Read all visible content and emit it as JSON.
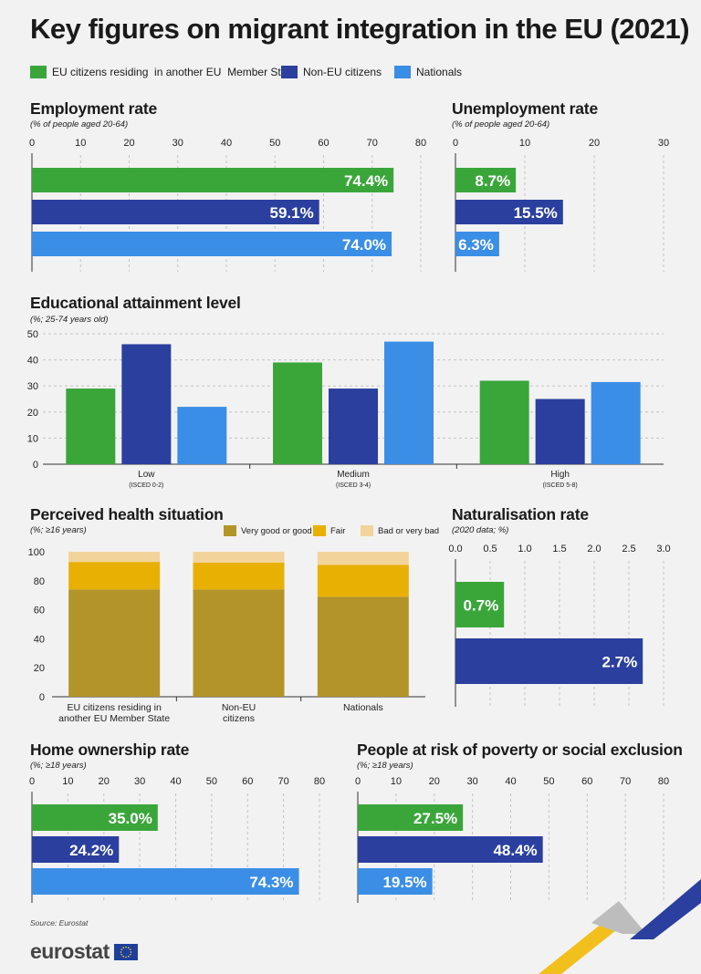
{
  "title": "Key figures on migrant integration in the EU (2021)",
  "colors": {
    "eu": "#3aa63a",
    "noneu": "#2a3f9e",
    "nationals": "#3b8ee6",
    "health_good": "#b39429",
    "health_fair": "#e8b002",
    "health_bad": "#f2d49a"
  },
  "legend": [
    {
      "label": "EU citizens residing  in another EU  Member State"
    },
    {
      "label": "Non-EU citizens"
    },
    {
      "label": "Nationals"
    }
  ],
  "sections": {
    "employment": {
      "title": "Employment rate",
      "subtitle": "(% of people aged 20-64)"
    },
    "unemployment": {
      "title": "Unemployment rate",
      "subtitle": "(% of people aged 20-64)"
    },
    "education": {
      "title": "Educational attainment level",
      "subtitle": "(%; 25-74 years old)"
    },
    "health": {
      "title": "Perceived health situation",
      "subtitle": "(%; ≥16 years)"
    },
    "naturalisation": {
      "title": "Naturalisation rate",
      "subtitle": "(2020 data; %)"
    },
    "home": {
      "title": "Home ownership rate",
      "subtitle": "(%; ≥18 years)"
    },
    "poverty": {
      "title": "People at risk of poverty or social exclusion",
      "subtitle": "(%; ≥18 years)"
    }
  },
  "health_legend": [
    {
      "label": "Very good or good"
    },
    {
      "label": "Fair"
    },
    {
      "label": "Bad or very bad"
    }
  ],
  "source": "Source: Eurostat",
  "logo_text": "eurostat",
  "chart_data": [
    {
      "id": "employment",
      "type": "bar",
      "orientation": "horizontal",
      "title": "Employment rate",
      "categories": [
        "EU citizens residing in another EU Member State",
        "Non-EU citizens",
        "Nationals"
      ],
      "values": [
        74.4,
        59.1,
        74.0
      ],
      "labels": [
        "74.4%",
        "59.1%",
        "74.0%"
      ],
      "xlim": [
        0,
        80
      ],
      "ticks": [
        "0",
        "10",
        "20",
        "30",
        "40",
        "50",
        "60",
        "70",
        "80"
      ]
    },
    {
      "id": "unemployment",
      "type": "bar",
      "orientation": "horizontal",
      "title": "Unemployment rate",
      "categories": [
        "EU citizens residing in another EU Member State",
        "Non-EU citizens",
        "Nationals"
      ],
      "values": [
        8.7,
        15.5,
        6.3
      ],
      "labels": [
        "8.7%",
        "15.5%",
        "6.3%"
      ],
      "xlim": [
        0,
        30
      ],
      "ticks": [
        "0",
        "10",
        "20",
        "30"
      ]
    },
    {
      "id": "education",
      "type": "bar",
      "orientation": "vertical",
      "title": "Educational attainment level",
      "categories": [
        "Low",
        "Medium",
        "High"
      ],
      "category_sublabels": [
        "(ISCED 0-2)",
        "(ISCED 3-4)",
        "(ISCED 5-8)"
      ],
      "series": [
        {
          "name": "EU citizens residing in another EU Member State",
          "values": [
            29,
            39,
            32
          ]
        },
        {
          "name": "Non-EU citizens",
          "values": [
            46,
            29,
            25
          ]
        },
        {
          "name": "Nationals",
          "values": [
            22,
            47,
            31.5
          ]
        }
      ],
      "ylim": [
        0,
        50
      ],
      "ticks": [
        "0",
        "10",
        "20",
        "30",
        "40",
        "50"
      ]
    },
    {
      "id": "health",
      "type": "bar",
      "stacked": true,
      "title": "Perceived health situation",
      "categories": [
        "EU citizens residing in another EU Member State",
        "Non-EU citizens",
        "Nationals"
      ],
      "category_lines": [
        [
          "EU citizens residing in",
          "another EU Member State"
        ],
        [
          "Non-EU",
          "citizens"
        ],
        [
          "Nationals"
        ]
      ],
      "series": [
        {
          "name": "Very good or good",
          "values": [
            74,
            74,
            69
          ]
        },
        {
          "name": "Fair",
          "values": [
            19,
            18.5,
            22
          ]
        },
        {
          "name": "Bad or very bad",
          "values": [
            7,
            7.5,
            9
          ]
        }
      ],
      "ylim": [
        0,
        100
      ],
      "ticks": [
        "0",
        "20",
        "40",
        "60",
        "80",
        "100"
      ]
    },
    {
      "id": "naturalisation",
      "type": "bar",
      "orientation": "horizontal",
      "title": "Naturalisation rate",
      "categories": [
        "EU citizens residing in another EU Member State",
        "Non-EU citizens"
      ],
      "values": [
        0.7,
        2.7
      ],
      "labels": [
        "0.7%",
        "2.7%"
      ],
      "xlim": [
        0,
        3
      ],
      "ticks": [
        "0.0",
        "0.5",
        "1.0",
        "1.5",
        "2.0",
        "2.5",
        "3.0"
      ]
    },
    {
      "id": "home",
      "type": "bar",
      "orientation": "horizontal",
      "title": "Home ownership rate",
      "categories": [
        "EU citizens residing in another EU Member State",
        "Non-EU citizens",
        "Nationals"
      ],
      "values": [
        35.0,
        24.2,
        74.3
      ],
      "labels": [
        "35.0%",
        "24.2%",
        "74.3%"
      ],
      "xlim": [
        0,
        80
      ],
      "ticks": [
        "0",
        "10",
        "20",
        "30",
        "40",
        "50",
        "60",
        "70",
        "80"
      ]
    },
    {
      "id": "poverty",
      "type": "bar",
      "orientation": "horizontal",
      "title": "People at risk of poverty or social exclusion",
      "categories": [
        "EU citizens residing in another EU Member State",
        "Non-EU citizens",
        "Nationals"
      ],
      "values": [
        27.5,
        48.4,
        19.5
      ],
      "labels": [
        "27.5%",
        "48.4%",
        "19.5%"
      ],
      "xlim": [
        0,
        80
      ],
      "ticks": [
        "0",
        "10",
        "20",
        "30",
        "40",
        "50",
        "60",
        "70",
        "80"
      ]
    }
  ]
}
